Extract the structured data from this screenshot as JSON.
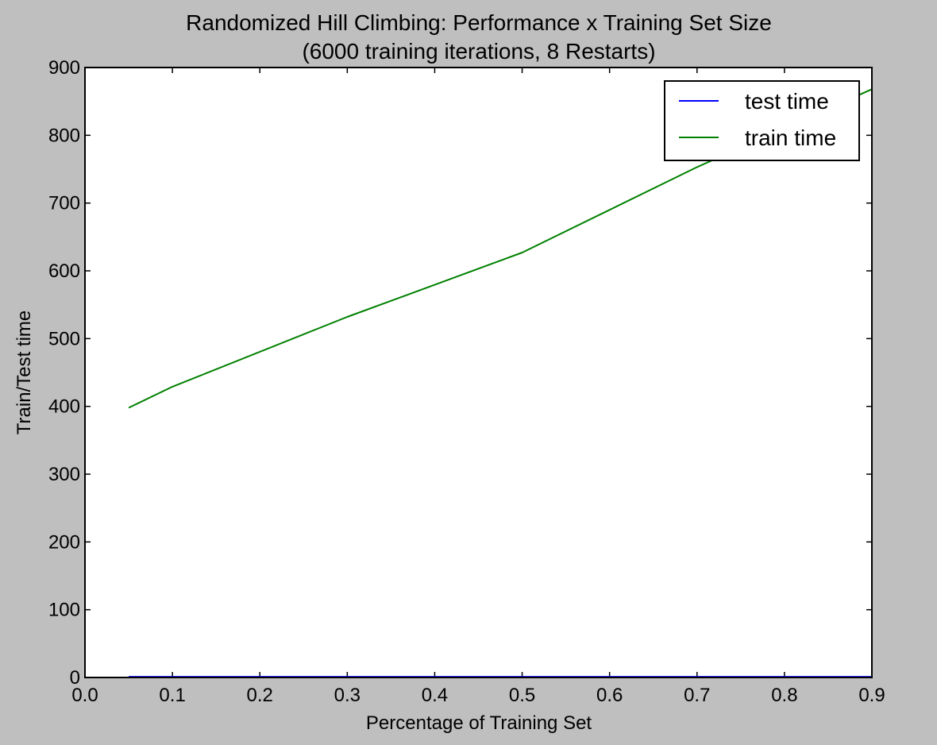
{
  "chart_data": {
    "type": "line",
    "title": "Randomized Hill Climbing: Performance x Training Set Size",
    "subtitle": "(6000 training iterations, 8 Restarts)",
    "xlabel": "Percentage of Training Set",
    "ylabel": "Train/Test time",
    "xlim": [
      0.0,
      0.9
    ],
    "ylim": [
      0,
      900
    ],
    "xticks": [
      "0.0",
      "0.1",
      "0.2",
      "0.3",
      "0.4",
      "0.5",
      "0.6",
      "0.7",
      "0.8",
      "0.9"
    ],
    "yticks": [
      "0",
      "100",
      "200",
      "300",
      "400",
      "500",
      "600",
      "700",
      "800",
      "900"
    ],
    "grid": false,
    "legend_position": "top-right",
    "series": [
      {
        "name": "test time",
        "color": "#0000ff",
        "x": [
          0.05,
          0.1,
          0.3,
          0.5,
          0.7,
          0.9
        ],
        "y": [
          1,
          1,
          1,
          1,
          1,
          1
        ]
      },
      {
        "name": "train time",
        "color": "#008000",
        "x": [
          0.05,
          0.1,
          0.3,
          0.5,
          0.7,
          0.9
        ],
        "y": [
          398,
          429,
          532,
          627,
          753,
          868
        ]
      }
    ]
  }
}
